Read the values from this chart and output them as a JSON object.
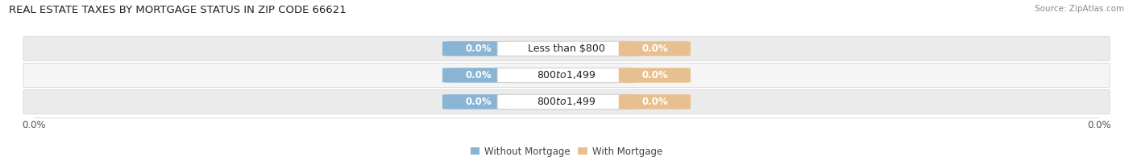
{
  "title": "REAL ESTATE TAXES BY MORTGAGE STATUS IN ZIP CODE 66621",
  "source": "Source: ZipAtlas.com",
  "categories": [
    "Less than $800",
    "$800 to $1,499",
    "$800 to $1,499"
  ],
  "without_mortgage": [
    0.0,
    0.0,
    0.0
  ],
  "with_mortgage": [
    0.0,
    0.0,
    0.0
  ],
  "bar_color_without": "#8ab4d4",
  "bar_color_with": "#e8c090",
  "row_bg_color": "#ebebeb",
  "row_bg_color2": "#f5f5f5",
  "row_border_color": "#d0d0d0",
  "title_fontsize": 9.5,
  "source_fontsize": 7.5,
  "label_fontsize": 8.5,
  "cat_fontsize": 9.0,
  "tick_fontsize": 8.5,
  "legend_label_without": "Without Mortgage",
  "legend_label_with": "With Mortgage",
  "background_color": "#ffffff",
  "xlim_left": -1.0,
  "xlim_right": 1.0
}
